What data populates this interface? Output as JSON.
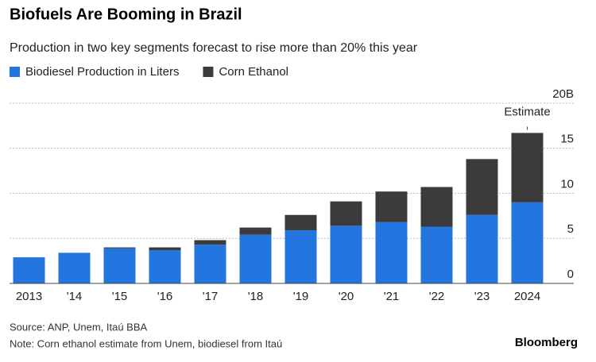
{
  "chart_data": {
    "type": "stacked_bar",
    "title": "Biofuels Are Booming in Brazil",
    "subtitle": "Production in two key segments forecast to rise more than 20% this year",
    "categories": [
      "2013",
      "'14",
      "'15",
      "'16",
      "'17",
      "'18",
      "'19",
      "'20",
      "'21",
      "'22",
      "'23",
      "2024"
    ],
    "series": [
      {
        "name": "Biodiesel Production in Liters",
        "color": "#2375e0",
        "values": [
          2.9,
          3.4,
          3.9,
          3.7,
          4.3,
          5.4,
          5.9,
          6.4,
          6.8,
          6.3,
          7.6,
          9.0
        ]
      },
      {
        "name": "Corn Ethanol",
        "color": "#3b3b3b",
        "values": [
          0,
          0,
          0.1,
          0.3,
          0.5,
          0.8,
          1.7,
          2.7,
          3.4,
          4.4,
          6.2,
          7.7
        ]
      }
    ],
    "ylim": [
      0,
      20
    ],
    "yticks": [
      0,
      5,
      10,
      15,
      {
        "value": 20,
        "label": "20B"
      }
    ],
    "grid": true,
    "annotations": [
      {
        "text": "Estimate",
        "category": "2024"
      }
    ],
    "source": "Source: ANP, Unem, Itaú BBA",
    "note": "Note: Corn ethanol estimate from Unem, biodiesel from Itaú",
    "brand": "Bloomberg"
  }
}
